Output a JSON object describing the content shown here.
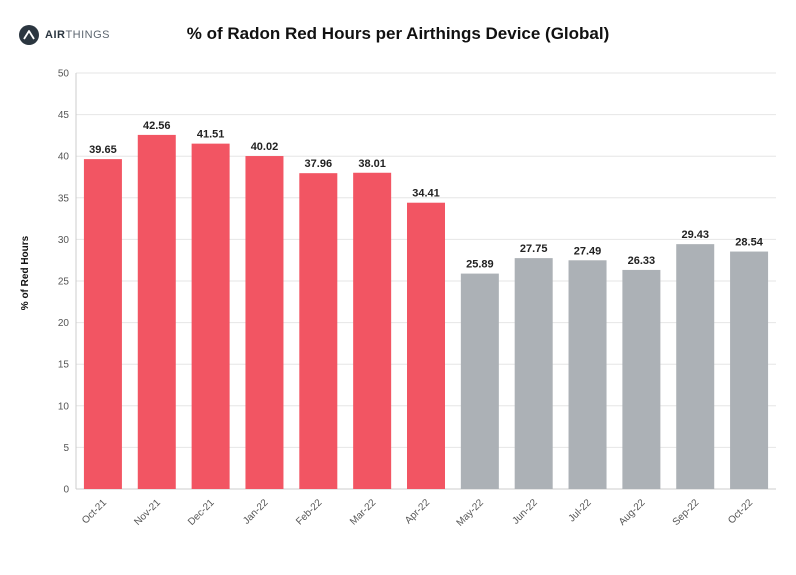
{
  "logo": {
    "prefix": "AIR",
    "suffix": "THINGS"
  },
  "chart_data": {
    "type": "bar",
    "title": "% of Radon Red Hours per Airthings Device (Global)",
    "xlabel": "",
    "ylabel": "% of Red Hours",
    "ylim": [
      0,
      50
    ],
    "yticks": [
      0,
      5,
      10,
      15,
      20,
      25,
      30,
      35,
      40,
      45,
      50
    ],
    "categories": [
      "Oct-21",
      "Nov-21",
      "Dec-21",
      "Jan-22",
      "Feb-22",
      "Mar-22",
      "Apr-22",
      "May-22",
      "Jun-22",
      "Jul-22",
      "Aug-22",
      "Sep-22",
      "Oct-22"
    ],
    "values": [
      39.65,
      42.56,
      41.51,
      40.02,
      37.96,
      38.01,
      34.41,
      25.89,
      27.75,
      27.49,
      26.33,
      29.43,
      28.54
    ],
    "value_labels": [
      "39.65",
      "42.56",
      "41.51",
      "40.02",
      "37.96",
      "38.01",
      "34.41",
      "25.89",
      "27.75",
      "27.49",
      "26.33",
      "29.43",
      "28.54"
    ],
    "bar_colors": [
      "#f25563",
      "#f25563",
      "#f25563",
      "#f25563",
      "#f25563",
      "#f25563",
      "#f25563",
      "#acb1b6",
      "#acb1b6",
      "#acb1b6",
      "#acb1b6",
      "#acb1b6",
      "#acb1b6"
    ],
    "grid": true,
    "legend": "none"
  }
}
